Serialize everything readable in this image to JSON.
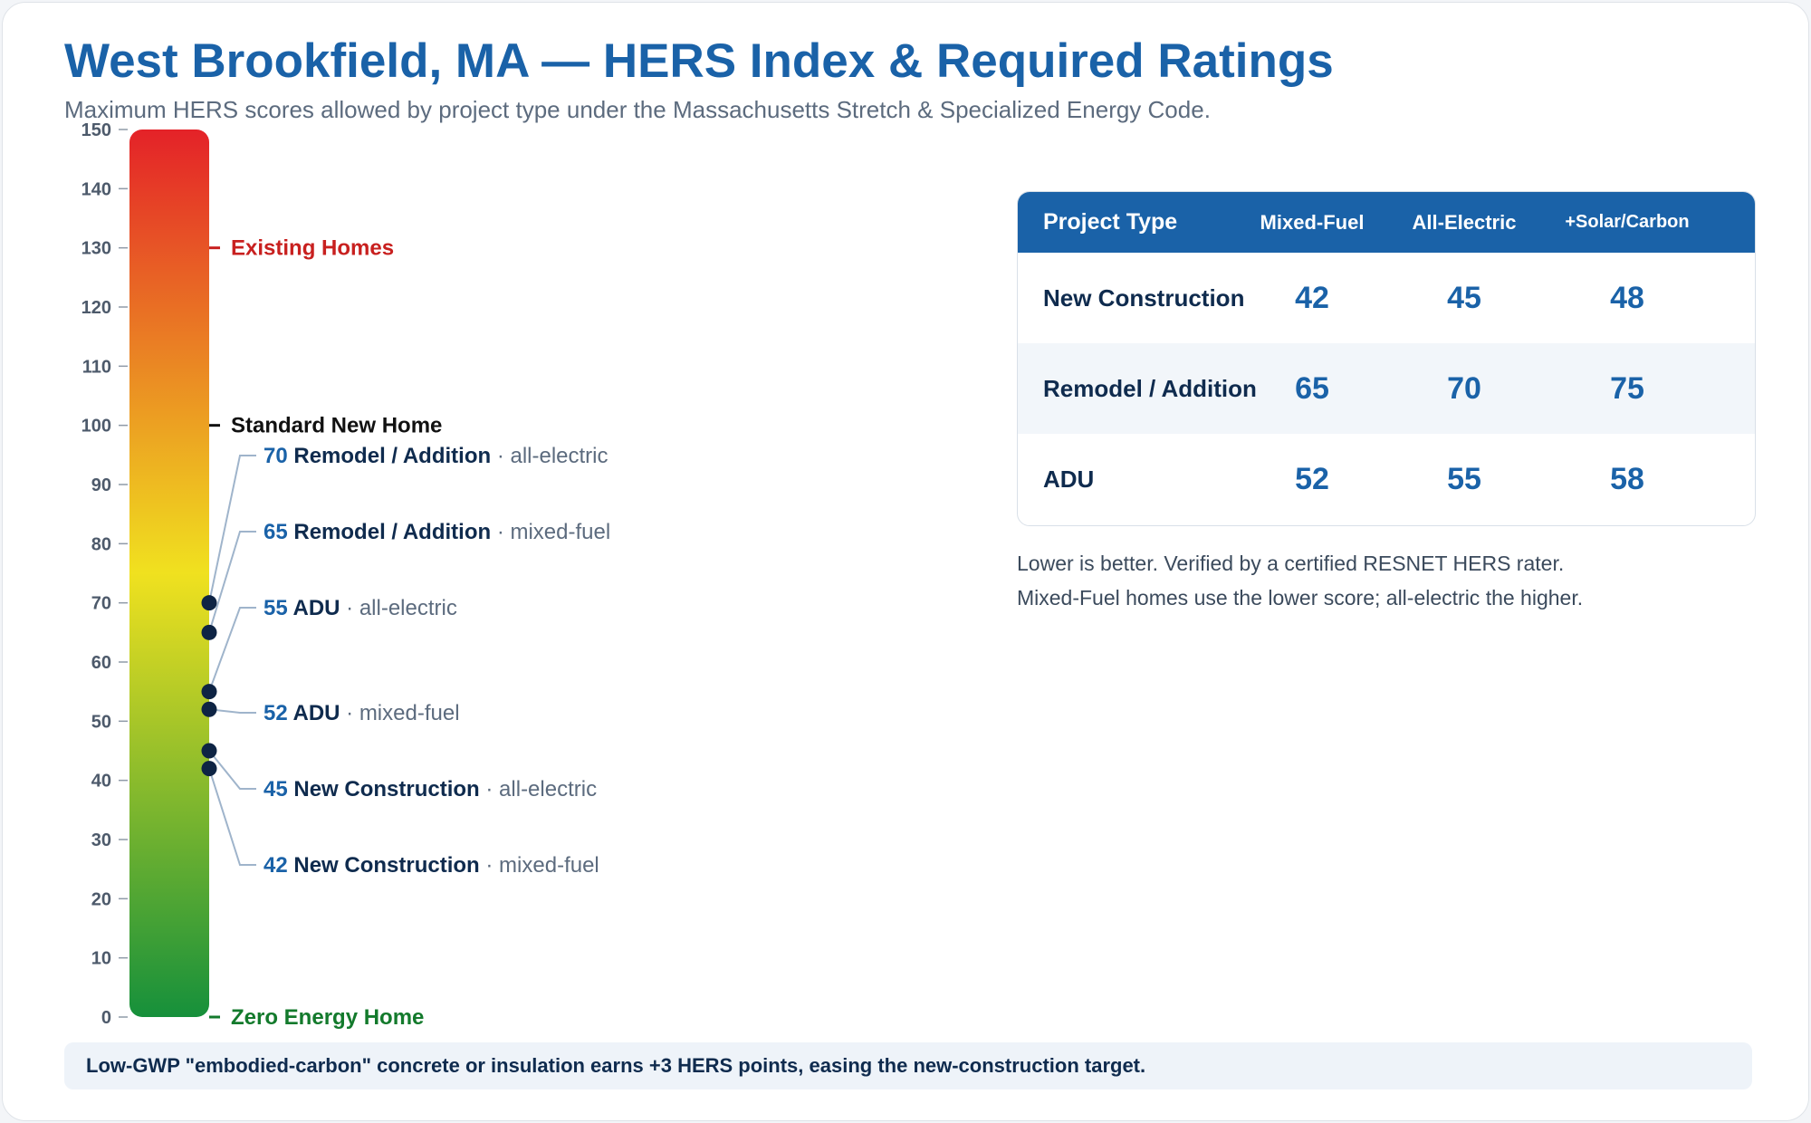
{
  "title": "West Brookfield, MA — HERS Index & Required Ratings",
  "subtitle": "Maximum HERS scores allowed by project type under the Massachusetts Stretch & Specialized Energy Code.",
  "chart_data": {
    "type": "scale",
    "yaxis": {
      "min": 0,
      "max": 150,
      "ticks": [
        0,
        10,
        20,
        30,
        40,
        50,
        60,
        70,
        80,
        90,
        100,
        110,
        120,
        130,
        140,
        150
      ]
    },
    "gradient": {
      "low_color": "#16903b",
      "mid_color": "#f0e11f",
      "high_color": "#e42228"
    },
    "reference_marks": [
      {
        "value": 130,
        "label": "Existing Homes",
        "color": "#c8201f"
      },
      {
        "value": 100,
        "label": "Standard New Home",
        "color": "#111111"
      },
      {
        "value": 0,
        "label": "Zero Energy Home",
        "color": "#137a2c"
      }
    ],
    "points": [
      {
        "value": 70,
        "name": "Remodel / Addition",
        "fuel": "· all-electric"
      },
      {
        "value": 65,
        "name": "Remodel / Addition",
        "fuel": "· mixed-fuel"
      },
      {
        "value": 55,
        "name": "ADU",
        "fuel": "· all-electric"
      },
      {
        "value": 52,
        "name": "ADU",
        "fuel": "· mixed-fuel"
      },
      {
        "value": 45,
        "name": "New Construction",
        "fuel": "· all-electric"
      },
      {
        "value": 42,
        "name": "New Construction",
        "fuel": "· mixed-fuel"
      }
    ]
  },
  "table": {
    "headers": [
      "Project Type",
      "Mixed-Fuel",
      "All-Electric",
      "+Solar/Carbon"
    ],
    "rows": [
      {
        "type": "New Construction",
        "mixed": "42",
        "electric": "45",
        "solar": "48"
      },
      {
        "type": "Remodel / Addition",
        "mixed": "65",
        "electric": "70",
        "solar": "75"
      },
      {
        "type": "ADU",
        "mixed": "52",
        "electric": "55",
        "solar": "58"
      }
    ]
  },
  "notes": {
    "line1": "Lower is better. Verified by a certified RESNET HERS rater.",
    "line2": "Mixed-Fuel homes use the lower score; all-electric the higher."
  },
  "footer": "Low-GWP \"embodied-carbon\" concrete or insulation earns +3 HERS points, easing the new-construction target.",
  "colors": {
    "accent": "#1a62a8",
    "dot": "#0e2444",
    "leader": "#9fb4cb"
  }
}
